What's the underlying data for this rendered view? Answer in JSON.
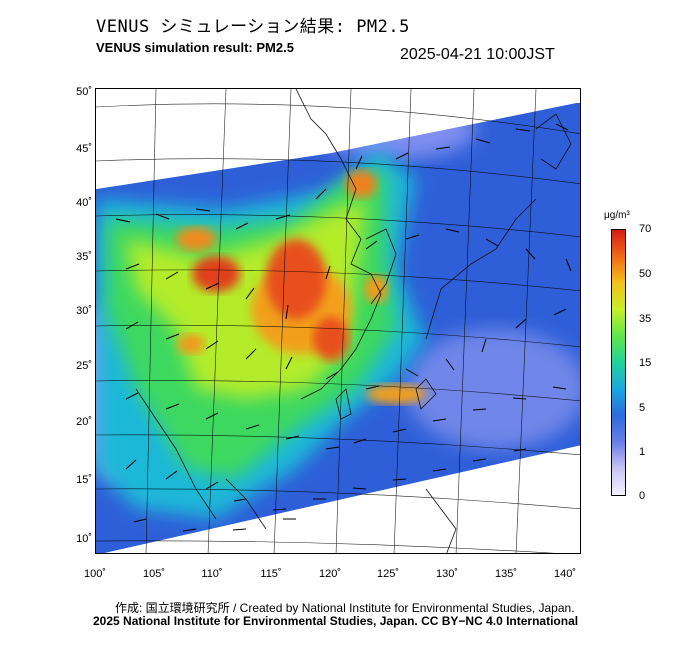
{
  "header": {
    "title_jp": "VENUS シミュレーション結果: PM2.5",
    "title_en": "VENUS simulation result: PM2.5",
    "timestamp": "2025-04-21 10:00JST"
  },
  "map": {
    "lat_labels": [
      "50˚",
      "45˚",
      "40˚",
      "35˚",
      "30˚",
      "25˚",
      "20˚",
      "15˚",
      "10˚"
    ],
    "lon_labels": [
      "100˚",
      "105˚",
      "110˚",
      "115˚",
      "120˚",
      "125˚",
      "130˚",
      "135˚",
      "140˚"
    ],
    "lon_range": [
      100,
      142
    ],
    "lat_range": [
      9,
      51
    ]
  },
  "colorbar": {
    "unit": "μg/m³",
    "labels": [
      "70",
      "50",
      "35",
      "15",
      "5",
      "1",
      "0"
    ],
    "colors": [
      "#f4f0ff",
      "#6a7ee8",
      "#2c6cdc",
      "#1aa8e0",
      "#22d29a",
      "#5ee64a",
      "#c8ef28",
      "#f2c21a",
      "#f06a18",
      "#d41c14"
    ]
  },
  "footer": {
    "credit_line1": "作成: 国立環境研究所 / Created by National Institute for Environmental Studies, Japan.",
    "credit_line2": "2025 National Institute for Environmental Studies, Japan. CC BY−NC 4.0 International"
  }
}
